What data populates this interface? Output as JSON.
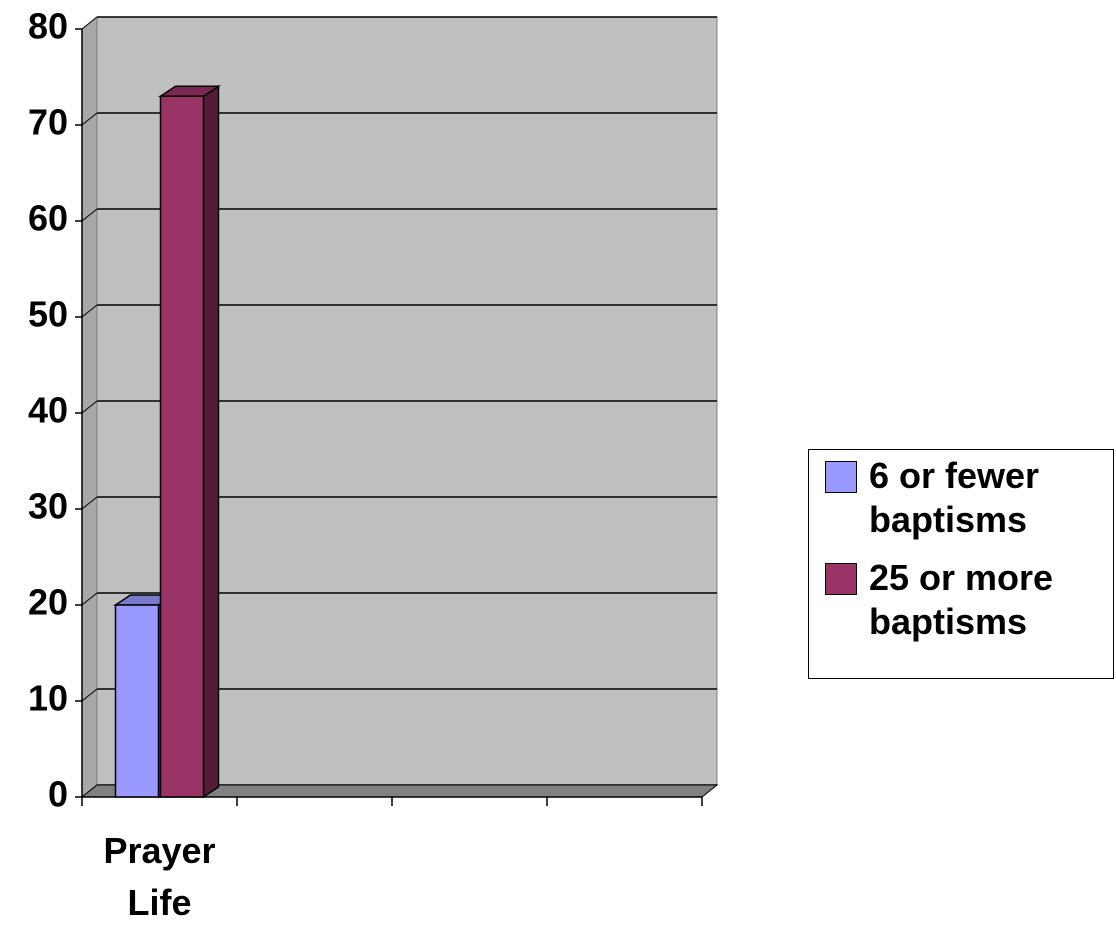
{
  "chart_data": {
    "type": "bar3d",
    "categories": [
      "Prayer Life",
      null,
      null,
      null
    ],
    "series": [
      {
        "name": "6 or fewer baptisms",
        "color": "#9999ff",
        "values": [
          20,
          null,
          null,
          null
        ]
      },
      {
        "name": "25 or more baptisms",
        "color": "#993366",
        "values": [
          73,
          null,
          null,
          null
        ]
      }
    ],
    "ylim": [
      0,
      80
    ],
    "yticks": [
      0,
      10,
      20,
      30,
      40,
      50,
      60,
      70,
      80
    ],
    "grid": true,
    "legend": "right"
  }
}
